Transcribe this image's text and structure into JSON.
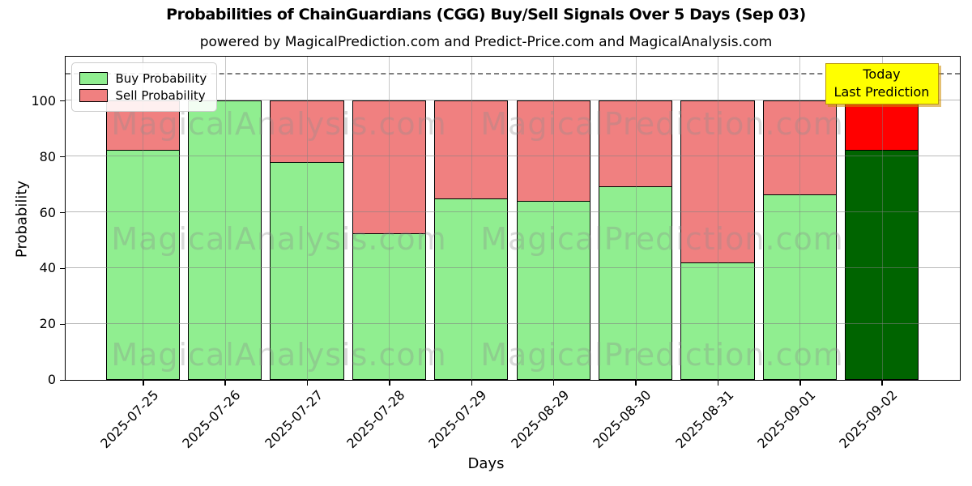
{
  "chart_data": {
    "type": "bar",
    "stacked": true,
    "title": "Probabilities of ChainGuardians (CGG) Buy/Sell Signals Over 5 Days (Sep 03)",
    "subtitle": "powered by MagicalPrediction.com and Predict-Price.com and MagicalAnalysis.com",
    "xlabel": "Days",
    "ylabel": "Probability",
    "categories": [
      "2025-07-25",
      "2025-07-26",
      "2025-07-27",
      "2025-07-28",
      "2025-07-29",
      "2025-08-29",
      "2025-08-30",
      "2025-08-31",
      "2025-09-01",
      "2025-09-02"
    ],
    "series": [
      {
        "name": "Buy Probability",
        "color": "#90EE90",
        "values": [
          82.5,
          100,
          78,
          52.5,
          65,
          64,
          69.5,
          42,
          66.5,
          82.5
        ]
      },
      {
        "name": "Sell Probability",
        "color": "#F08080",
        "values": [
          17.5,
          0,
          22,
          47.5,
          35,
          36,
          30.5,
          58,
          33.5,
          17.5
        ]
      }
    ],
    "today_bar": {
      "category": "2025-09-02",
      "index": 9,
      "buy_color": "#006400",
      "sell_color": "#FF0000"
    },
    "annotation": {
      "line1": "Today",
      "line2": "Last Prediction",
      "bg_color": "#FFFF00"
    },
    "y_ticks": [
      0,
      20,
      40,
      60,
      80,
      100
    ],
    "ylim": [
      0,
      115.9
    ],
    "dashed_line_y": 110,
    "grid": true,
    "legend_position": "upper-left",
    "watermarks": {
      "left": "MagicalAnalysis.com",
      "right": "MagicalPrediction.com"
    },
    "colors": {
      "buy": "#90EE90",
      "sell": "#F08080",
      "today_buy": "#006400",
      "today_sell": "#FF0000",
      "bar_edge": "#000000",
      "grid": "#b0b0b0",
      "dashed_line": "#7f7f7f",
      "annotation_bg": "#FFFF00"
    }
  }
}
